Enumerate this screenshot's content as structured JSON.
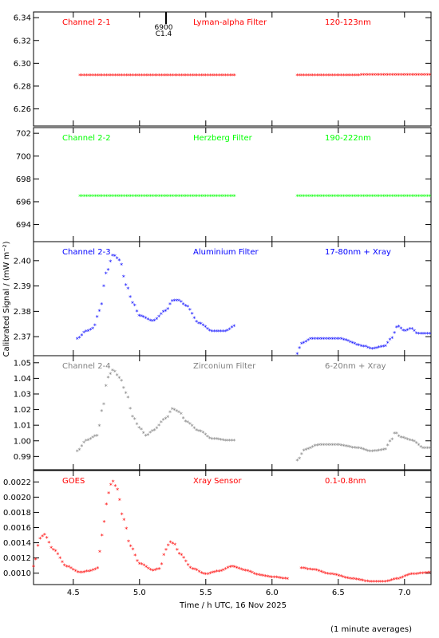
{
  "figure": {
    "ylabel": "Calibrated Signal / (mW m⁻²)",
    "xlabel": "Time / h UTC, 16 Nov 2025",
    "footnote": "(1 minute averages)",
    "event_marker": {
      "time": 5.2,
      "labels": [
        "6900",
        "C1.4"
      ]
    }
  },
  "chart_data": [
    {
      "type": "scatter",
      "color": "#ff0000",
      "ylim": [
        6.245,
        6.345
      ],
      "yticks": [
        6.26,
        6.28,
        6.3,
        6.32,
        6.34
      ],
      "ytick_labels": [
        "6.26",
        "6.28",
        "6.30",
        "6.32",
        "6.34"
      ],
      "annotations": [
        "Channel 2-1",
        "Lyman-alpha Filter",
        "120-123nm"
      ],
      "segments": [
        {
          "t0": 4.55,
          "t1": 5.72,
          "knots": [
            [
              4.55,
              6.289
            ],
            [
              5.72,
              6.289
            ]
          ]
        },
        {
          "t0": 6.19,
          "t1": 7.2,
          "knots": [
            [
              6.19,
              6.289
            ],
            [
              7.2,
              6.2895
            ]
          ]
        }
      ]
    },
    {
      "type": "scatter",
      "color": "#00ff00",
      "ylim": [
        692.5,
        702.5
      ],
      "yticks": [
        694,
        696,
        698,
        700,
        702
      ],
      "ytick_labels": [
        "694",
        "696",
        "698",
        "700",
        "702"
      ],
      "annotations": [
        "Channel 2-2",
        "Herzberg Filter",
        "190-222nm"
      ],
      "segments": [
        {
          "t0": 4.55,
          "t1": 5.72,
          "knots": [
            [
              4.55,
              696.45
            ],
            [
              5.72,
              696.45
            ]
          ]
        },
        {
          "t0": 6.19,
          "t1": 7.2,
          "knots": [
            [
              6.19,
              696.45
            ],
            [
              7.2,
              696.45
            ]
          ]
        }
      ]
    },
    {
      "type": "scatter",
      "color": "#0000ff",
      "ylim": [
        2.3625,
        2.4075
      ],
      "yticks": [
        2.37,
        2.38,
        2.39,
        2.4
      ],
      "ytick_labels": [
        "2.37",
        "2.38",
        "2.39",
        "2.40"
      ],
      "annotations": [
        "Channel 2-3",
        "Aluminium Filter",
        "17-80nm + Xray"
      ],
      "segments": [
        {
          "t0": 4.53,
          "t1": 5.72,
          "knots": [
            [
              4.53,
              2.369
            ],
            [
              4.6,
              2.372
            ],
            [
              4.65,
              2.373
            ],
            [
              4.7,
              2.38
            ],
            [
              4.75,
              2.395
            ],
            [
              4.8,
              2.402
            ],
            [
              4.85,
              2.4
            ],
            [
              4.9,
              2.39
            ],
            [
              4.95,
              2.383
            ],
            [
              5.0,
              2.378
            ],
            [
              5.1,
              2.376
            ],
            [
              5.2,
              2.38
            ],
            [
              5.25,
              2.384
            ],
            [
              5.3,
              2.384
            ],
            [
              5.35,
              2.382
            ],
            [
              5.45,
              2.375
            ],
            [
              5.55,
              2.372
            ],
            [
              5.65,
              2.372
            ],
            [
              5.72,
              2.374
            ]
          ]
        },
        {
          "t0": 6.19,
          "t1": 7.2,
          "knots": [
            [
              6.19,
              2.363
            ],
            [
              6.22,
              2.367
            ],
            [
              6.3,
              2.369
            ],
            [
              6.5,
              2.369
            ],
            [
              6.7,
              2.366
            ],
            [
              6.75,
              2.365
            ],
            [
              6.85,
              2.366
            ],
            [
              6.9,
              2.369
            ],
            [
              6.95,
              2.374
            ],
            [
              7.0,
              2.372
            ],
            [
              7.05,
              2.373
            ],
            [
              7.1,
              2.371
            ],
            [
              7.2,
              2.371
            ]
          ]
        }
      ]
    },
    {
      "type": "scatter",
      "color": "#808080",
      "ylim": [
        0.9815,
        1.0545
      ],
      "yticks": [
        0.99,
        1.0,
        1.01,
        1.02,
        1.03,
        1.04,
        1.05
      ],
      "ytick_labels": [
        "0.99",
        "1.00",
        "1.01",
        "1.02",
        "1.03",
        "1.04",
        "1.05"
      ],
      "annotations": [
        "Channel 2-4",
        "Zirconium Filter",
        "6-20nm + Xray"
      ],
      "segments": [
        {
          "t0": 4.53,
          "t1": 5.72,
          "knots": [
            [
              4.53,
              0.993
            ],
            [
              4.6,
              1.0
            ],
            [
              4.68,
              1.003
            ],
            [
              4.72,
              1.02
            ],
            [
              4.76,
              1.04
            ],
            [
              4.8,
              1.045
            ],
            [
              4.85,
              1.04
            ],
            [
              4.9,
              1.03
            ],
            [
              4.95,
              1.015
            ],
            [
              5.0,
              1.008
            ],
            [
              5.05,
              1.003
            ],
            [
              5.1,
              1.006
            ],
            [
              5.2,
              1.014
            ],
            [
              5.25,
              1.02
            ],
            [
              5.3,
              1.018
            ],
            [
              5.35,
              1.012
            ],
            [
              5.45,
              1.006
            ],
            [
              5.55,
              1.001
            ],
            [
              5.65,
              1.0
            ],
            [
              5.72,
              1.0
            ]
          ]
        },
        {
          "t0": 6.19,
          "t1": 7.2,
          "knots": [
            [
              6.19,
              0.987
            ],
            [
              6.25,
              0.994
            ],
            [
              6.35,
              0.997
            ],
            [
              6.5,
              0.997
            ],
            [
              6.65,
              0.995
            ],
            [
              6.75,
              0.993
            ],
            [
              6.85,
              0.994
            ],
            [
              6.9,
              1.0
            ],
            [
              6.93,
              1.005
            ],
            [
              6.97,
              1.002
            ],
            [
              7.05,
              1.0
            ],
            [
              7.15,
              0.995
            ],
            [
              7.2,
              0.995
            ]
          ]
        }
      ]
    },
    {
      "type": "scatter",
      "color": "#ff0000",
      "ylim": [
        0.00085,
        0.00235
      ],
      "yticks": [
        0.001,
        0.0012,
        0.0014,
        0.0016,
        0.0018,
        0.002,
        0.0022
      ],
      "ytick_labels": [
        "0.0010",
        "0.0012",
        "0.0014",
        "0.0016",
        "0.0018",
        "0.0020",
        "0.0022"
      ],
      "annotations": [
        "GOES",
        "Xray Sensor",
        "0.1-0.8nm"
      ],
      "segments": [
        {
          "t0": 4.2,
          "t1": 6.13,
          "knots": [
            [
              4.2,
              0.00108
            ],
            [
              4.25,
              0.00145
            ],
            [
              4.28,
              0.0015
            ],
            [
              4.35,
              0.0013
            ],
            [
              4.45,
              0.00108
            ],
            [
              4.55,
              0.001
            ],
            [
              4.62,
              0.00102
            ],
            [
              4.68,
              0.00105
            ],
            [
              4.72,
              0.0015
            ],
            [
              4.75,
              0.0019
            ],
            [
              4.78,
              0.00215
            ],
            [
              4.8,
              0.0022
            ],
            [
              4.83,
              0.0021
            ],
            [
              4.88,
              0.0017
            ],
            [
              4.93,
              0.00135
            ],
            [
              5.0,
              0.00112
            ],
            [
              5.1,
              0.00103
            ],
            [
              5.15,
              0.00105
            ],
            [
              5.2,
              0.0013
            ],
            [
              5.23,
              0.0014
            ],
            [
              5.26,
              0.00138
            ],
            [
              5.3,
              0.00125
            ],
            [
              5.4,
              0.00105
            ],
            [
              5.5,
              0.00098
            ],
            [
              5.6,
              0.00102
            ],
            [
              5.7,
              0.00108
            ],
            [
              5.8,
              0.00103
            ],
            [
              5.9,
              0.00097
            ],
            [
              6.0,
              0.00094
            ],
            [
              6.13,
              0.00092
            ]
          ]
        },
        {
          "t0": 6.22,
          "t1": 7.2,
          "knots": [
            [
              6.22,
              0.00106
            ],
            [
              6.3,
              0.00104
            ],
            [
              6.45,
              0.00098
            ],
            [
              6.6,
              0.00092
            ],
            [
              6.75,
              0.00088
            ],
            [
              6.85,
              0.00088
            ],
            [
              6.95,
              0.00092
            ],
            [
              7.05,
              0.00098
            ],
            [
              7.2,
              0.001
            ]
          ]
        }
      ]
    }
  ],
  "x_axis": {
    "range": [
      4.2,
      7.2
    ],
    "ticks": [
      4.5,
      5.0,
      5.5,
      6.0,
      6.5,
      7.0
    ],
    "tick_labels": [
      "4.5",
      "5.0",
      "5.5",
      "6.0",
      "6.5",
      "7.0"
    ]
  }
}
